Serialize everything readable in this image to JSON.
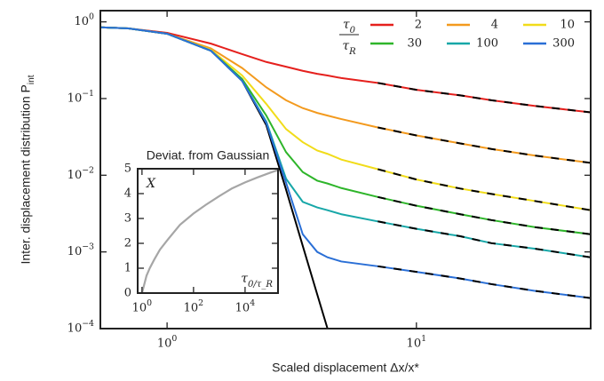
{
  "chart_data": [
    {
      "type": "line",
      "xlabel": "Scaled displacement Δx/x*",
      "ylabel": "Inter. displacement distribution P_int",
      "xscale": "log",
      "yscale": "log",
      "xlim": [
        0.54,
        50
      ],
      "ylim": [
        0.0001,
        1.4
      ],
      "xticks": [
        {
          "value": 1,
          "label": "10^0"
        },
        {
          "value": 10,
          "label": "10^1"
        }
      ],
      "yticks": [
        {
          "value": 0.0001,
          "label": "10^−4"
        },
        {
          "value": 0.001,
          "label": "10^−3"
        },
        {
          "value": 0.01,
          "label": "10^−2"
        },
        {
          "value": 0.1,
          "label": "10^−1"
        },
        {
          "value": 1,
          "label": "10^0"
        }
      ],
      "legend": "upper right",
      "legend_title": [
        "τ_0",
        "τ_R"
      ],
      "asymptote_overlay": {
        "color": "#000000",
        "from_x": 7
      },
      "x": [
        0.54,
        0.7,
        1,
        1.5,
        2,
        2.5,
        3,
        3.5,
        4,
        4.4,
        5,
        7,
        10,
        15,
        20,
        30,
        50
      ],
      "series": [
        {
          "color": "#000000",
          "values": [
            0.85,
            0.82,
            0.7,
            0.42,
            0.17,
            0.045,
            0.0065,
            0.0012,
            0.00028,
            0.0001,
            null,
            null,
            null,
            null,
            null,
            null,
            null
          ]
        },
        {
          "name": "2",
          "color": "#e5201d",
          "values": [
            0.85,
            0.82,
            0.72,
            0.52,
            0.38,
            0.3,
            0.26,
            0.23,
            0.21,
            0.2,
            0.185,
            0.16,
            0.13,
            0.11,
            0.095,
            0.08,
            0.066
          ]
        },
        {
          "name": "4",
          "color": "#f39a1e",
          "values": [
            0.85,
            0.82,
            0.7,
            0.45,
            0.25,
            0.14,
            0.095,
            0.075,
            0.065,
            0.06,
            0.054,
            0.042,
            0.033,
            0.026,
            0.022,
            0.018,
            0.0145
          ]
        },
        {
          "name": "10",
          "color": "#f1dc1a",
          "values": [
            0.85,
            0.82,
            0.7,
            0.43,
            0.2,
            0.085,
            0.04,
            0.027,
            0.021,
            0.019,
            0.016,
            0.012,
            0.0088,
            0.0067,
            0.0057,
            0.0046,
            0.0035
          ]
        },
        {
          "name": "30",
          "color": "#2eb52a",
          "values": [
            0.85,
            0.82,
            0.7,
            0.42,
            0.18,
            0.06,
            0.02,
            0.011,
            0.0085,
            0.0078,
            0.0068,
            0.0052,
            0.004,
            0.0031,
            0.0026,
            0.0021,
            0.0017
          ]
        },
        {
          "name": "100",
          "color": "#17a7a8",
          "values": [
            0.85,
            0.82,
            0.7,
            0.42,
            0.17,
            0.05,
            0.009,
            0.0045,
            0.0038,
            0.0035,
            0.0031,
            0.0025,
            0.002,
            0.0016,
            0.0013,
            0.0011,
            0.00085
          ]
        },
        {
          "name": "300",
          "color": "#2a6fd6",
          "values": [
            0.85,
            0.82,
            0.7,
            0.42,
            0.17,
            0.048,
            0.008,
            0.0017,
            0.001,
            0.00085,
            0.00075,
            0.00065,
            0.00055,
            0.00045,
            0.00038,
            0.00031,
            0.00025
          ]
        }
      ]
    },
    {
      "type": "line",
      "title": "Deviat. from Gaussian",
      "ylabel": "X",
      "xlabel": "τ_0/τ_R",
      "xscale": "log",
      "xlim": [
        0.68,
        190000
      ],
      "ylim": [
        0,
        5
      ],
      "xticks": [
        {
          "value": 1,
          "label": "10^0"
        },
        {
          "value": 100,
          "label": "10^2"
        },
        {
          "value": 10000,
          "label": "10^4"
        }
      ],
      "yticks": [
        0,
        1,
        2,
        3,
        4,
        5
      ],
      "x": [
        1,
        1.5,
        2,
        3,
        5,
        10,
        30,
        100,
        300,
        1000,
        3000,
        10000,
        30000,
        100000,
        190000
      ],
      "series": [
        {
          "color": "#a6a6a6",
          "values": [
            0,
            0.7,
            1.0,
            1.35,
            1.75,
            2.15,
            2.75,
            3.2,
            3.55,
            3.9,
            4.2,
            4.45,
            4.65,
            4.85,
            4.95
          ]
        }
      ]
    }
  ]
}
